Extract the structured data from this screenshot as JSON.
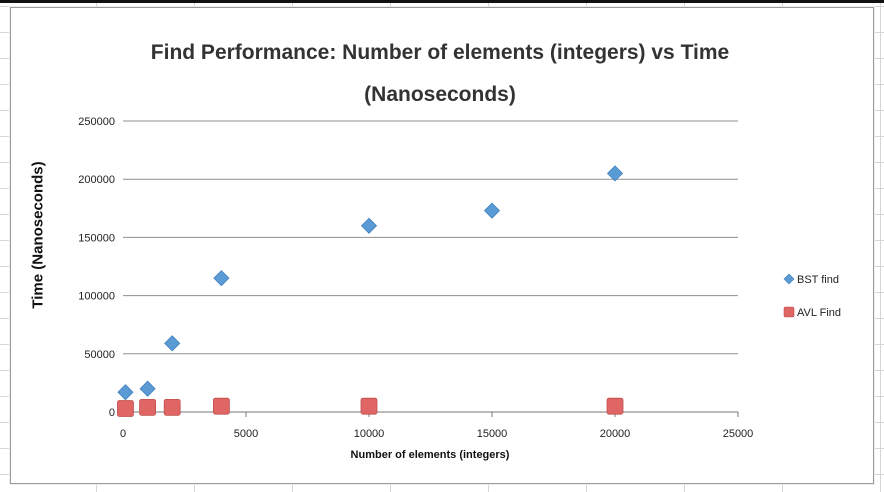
{
  "chart_data": {
    "type": "scatter",
    "title": "Find Performance: Number of elements (integers) vs Time",
    "title_line2": "(Nanoseconds)",
    "xlabel": "Number of elements (integers)",
    "ylabel": "Time (Nanoseconds)",
    "xlim": [
      0,
      25000
    ],
    "ylim": [
      0,
      250000
    ],
    "x_ticks": [
      0,
      5000,
      10000,
      15000,
      20000,
      25000
    ],
    "y_ticks": [
      0,
      50000,
      100000,
      150000,
      200000,
      250000
    ],
    "grid": "horizontal",
    "legend_position": "right",
    "series": [
      {
        "name": "BST find",
        "marker": "diamond",
        "color": "#5b9bd5",
        "x": [
          100,
          1000,
          2000,
          4000,
          10000,
          15000,
          20000
        ],
        "y": [
          17000,
          20000,
          59000,
          115000,
          160000,
          173000,
          205000
        ]
      },
      {
        "name": "AVL Find",
        "marker": "square",
        "color": "#e06666",
        "x": [
          100,
          1000,
          2000,
          4000,
          10000,
          20000
        ],
        "y": [
          3000,
          4000,
          4000,
          5000,
          5000,
          5000
        ]
      }
    ]
  }
}
